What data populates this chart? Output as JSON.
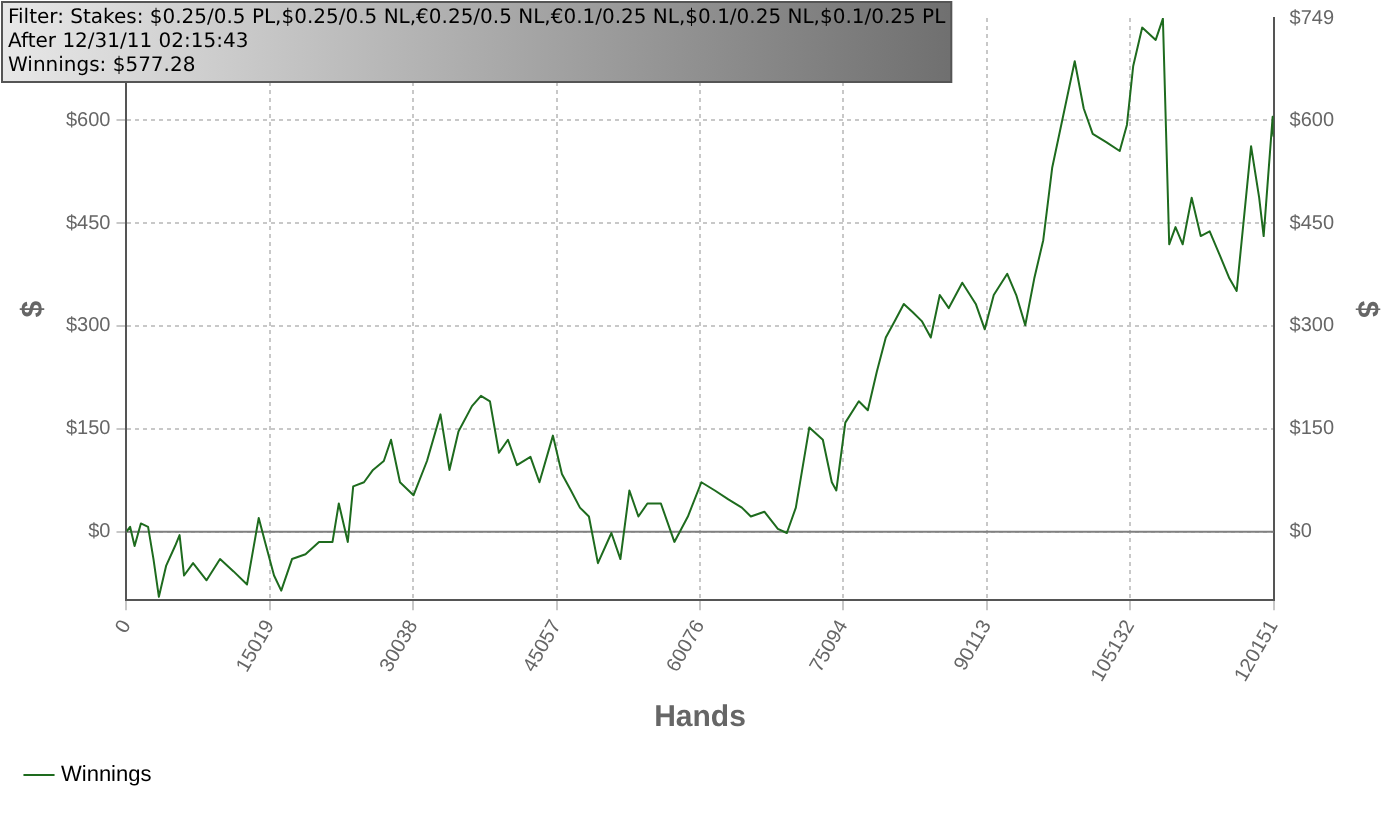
{
  "chart_data": {
    "type": "line",
    "xlabel": "Hands",
    "ylabel": "$",
    "y2label": "$",
    "annotations": [
      "Filter: Stakes: $0.25/0.5 PL,$0.25/0.5 NL,€0.25/0.5 NL,€0.1/0.25 NL,$0.1/0.25 NL,$0.1/0.25 PL",
      "After 12/31/11 02:15:43",
      "Winnings: $577.28"
    ],
    "x": [
      0,
      377,
      848,
      1508,
      2262,
      2827,
      3393,
      4147,
      5089,
      5560,
      6031,
      6974,
      8387,
      9801,
      11215,
      12628,
      13853,
      14513,
      15455,
      16209,
      17340,
      18754,
      20167,
      21581,
      22241,
      23183,
      23748,
      24879,
      25822,
      26953,
      27707,
      28649,
      30063,
      31476,
      32890,
      33832,
      34775,
      36188,
      37131,
      38073,
      39015,
      39958,
      40900,
      42314,
      43256,
      44670,
      45612,
      46555,
      47497,
      48439,
      49382,
      50795,
      51738,
      52680,
      53623,
      54565,
      55979,
      57392,
      58806,
      60219,
      61633,
      63046,
      64460,
      65402,
      66816,
      68230,
      69172,
      70115,
      71528,
      72942,
      73884,
      74355,
      75298,
      76711,
      77654,
      78596,
      79539,
      80481,
      81423,
      82366,
      83308,
      84251,
      85193,
      86135,
      87549,
      88963,
      89905,
      90847,
      92261,
      93203,
      94146,
      95088,
      96031,
      96973,
      97915,
      99329,
      100271,
      101214,
      102627,
      104041,
      104795,
      105455,
      106397,
      107811,
      108565,
      109225,
      109885,
      110638,
      111580,
      112523,
      113465,
      114408,
      115538,
      116292,
      117046,
      117800,
      118648,
      119119,
      119590,
      120061,
      120151
    ],
    "series": [
      {
        "name": "Winnings",
        "color": "#1e6b1e",
        "values": [
          0,
          7,
          -21,
          12,
          7,
          -40,
          -95,
          -50,
          -21,
          -5,
          -64,
          -46,
          -71,
          -40,
          -58,
          -77,
          20,
          -15,
          -64,
          -86,
          -40,
          -33,
          -15,
          -15,
          41,
          -15,
          66,
          72,
          90,
          103,
          134,
          72,
          53,
          103,
          171,
          90,
          146,
          183,
          198,
          190,
          115,
          134,
          97,
          109,
          72,
          140,
          84,
          60,
          35,
          22,
          -46,
          -2,
          -40,
          60,
          22,
          41,
          41,
          -15,
          22,
          72,
          60,
          47,
          35,
          22,
          29,
          4,
          -2,
          35,
          152,
          134,
          72,
          60,
          159,
          190,
          177,
          233,
          283,
          307,
          332,
          320,
          307,
          283,
          345,
          326,
          363,
          332,
          295,
          345,
          376,
          345,
          301,
          369,
          425,
          531,
          593,
          686,
          617,
          580,
          568,
          555,
          593,
          679,
          735,
          717,
          748,
          419,
          444,
          419,
          487,
          431,
          438,
          407,
          369,
          351,
          456,
          562,
          487,
          431,
          518,
          605,
          577
        ]
      }
    ],
    "xlim": [
      0,
      120151
    ],
    "xticks": [
      0,
      15019,
      30038,
      45057,
      60076,
      75094,
      90113,
      105132,
      120151
    ],
    "ylim": [
      -100,
      749
    ],
    "yticks": [
      {
        "value": 0,
        "label": "$0"
      },
      {
        "value": 150,
        "label": "$150"
      },
      {
        "value": 300,
        "label": "$300"
      },
      {
        "value": 450,
        "label": "$450"
      },
      {
        "value": 600,
        "label": "$600"
      }
    ],
    "y2lim": [
      -100,
      749
    ],
    "y2ticks": [
      {
        "value": 0,
        "label": "$0"
      },
      {
        "value": 150,
        "label": "$150"
      },
      {
        "value": 300,
        "label": "$300"
      },
      {
        "value": 450,
        "label": "$450"
      },
      {
        "value": 600,
        "label": "$600"
      },
      {
        "value": 749,
        "label": "$749"
      }
    ],
    "ref_lines": [
      {
        "axis": "y",
        "value": 0,
        "color": "#808080"
      }
    ],
    "grid": true,
    "legend": "bottom left",
    "marker": "none",
    "line_style": "solid"
  }
}
